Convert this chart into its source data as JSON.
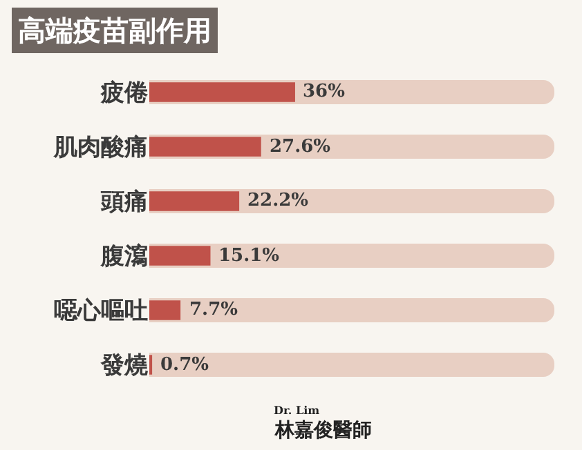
{
  "chart_data": {
    "type": "bar",
    "orientation": "horizontal",
    "title": "高端疫苗副作用",
    "categories": [
      "疲倦",
      "肌肉酸痛",
      "頭痛",
      "腹瀉",
      "噁心嘔吐",
      "發燒"
    ],
    "series": [
      {
        "color": "#e8cfc3",
        "values": [
          100,
          100,
          100,
          100,
          100,
          100
        ]
      },
      {
        "color": "#c0524a",
        "values": [
          36,
          27.6,
          22.2,
          15.1,
          7.7,
          0.7
        ],
        "value_labels": [
          "36%",
          "27.6%",
          "22.2%",
          "15.1%",
          "7.7%",
          "0.7%"
        ]
      }
    ],
    "xlim": [
      0,
      100
    ],
    "tick_labels": "y",
    "annotations": [
      "Dr. Lim",
      "林嘉俊醫師"
    ]
  }
}
